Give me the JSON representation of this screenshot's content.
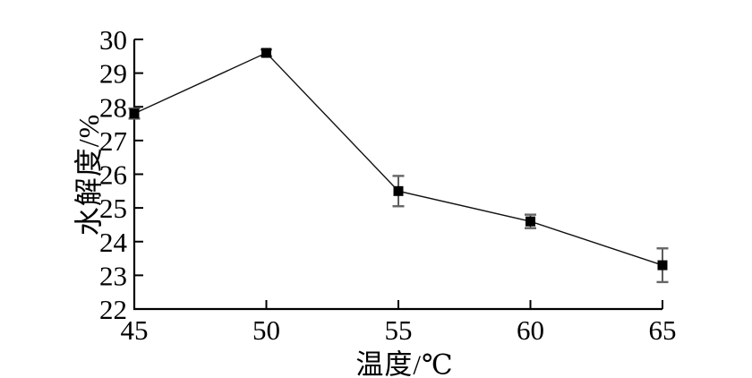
{
  "figure": {
    "background": "#ffffff",
    "axis_color": "#000000",
    "tick_label_color": "#000000"
  },
  "chart_data": {
    "type": "line",
    "xlabel": "温度/℃",
    "ylabel": "水解度/%",
    "xlim": [
      45,
      65
    ],
    "ylim": [
      22,
      30
    ],
    "xticks": [
      45,
      50,
      55,
      60,
      65
    ],
    "yticks": [
      22,
      23,
      24,
      25,
      26,
      27,
      28,
      29,
      30
    ],
    "grid": false,
    "legend": null,
    "series": [
      {
        "x": [
          45,
          50,
          55,
          60,
          65
        ],
        "y": [
          27.8,
          29.6,
          25.5,
          24.6,
          23.3
        ],
        "y_err": [
          0.15,
          0.1,
          0.45,
          0.2,
          0.5
        ],
        "marker": "filled-square",
        "marker_size": 11,
        "line_color": "#111111",
        "marker_color": "#000000",
        "error_bar_color": "#333333",
        "error_cap_color": "#666666"
      }
    ]
  }
}
